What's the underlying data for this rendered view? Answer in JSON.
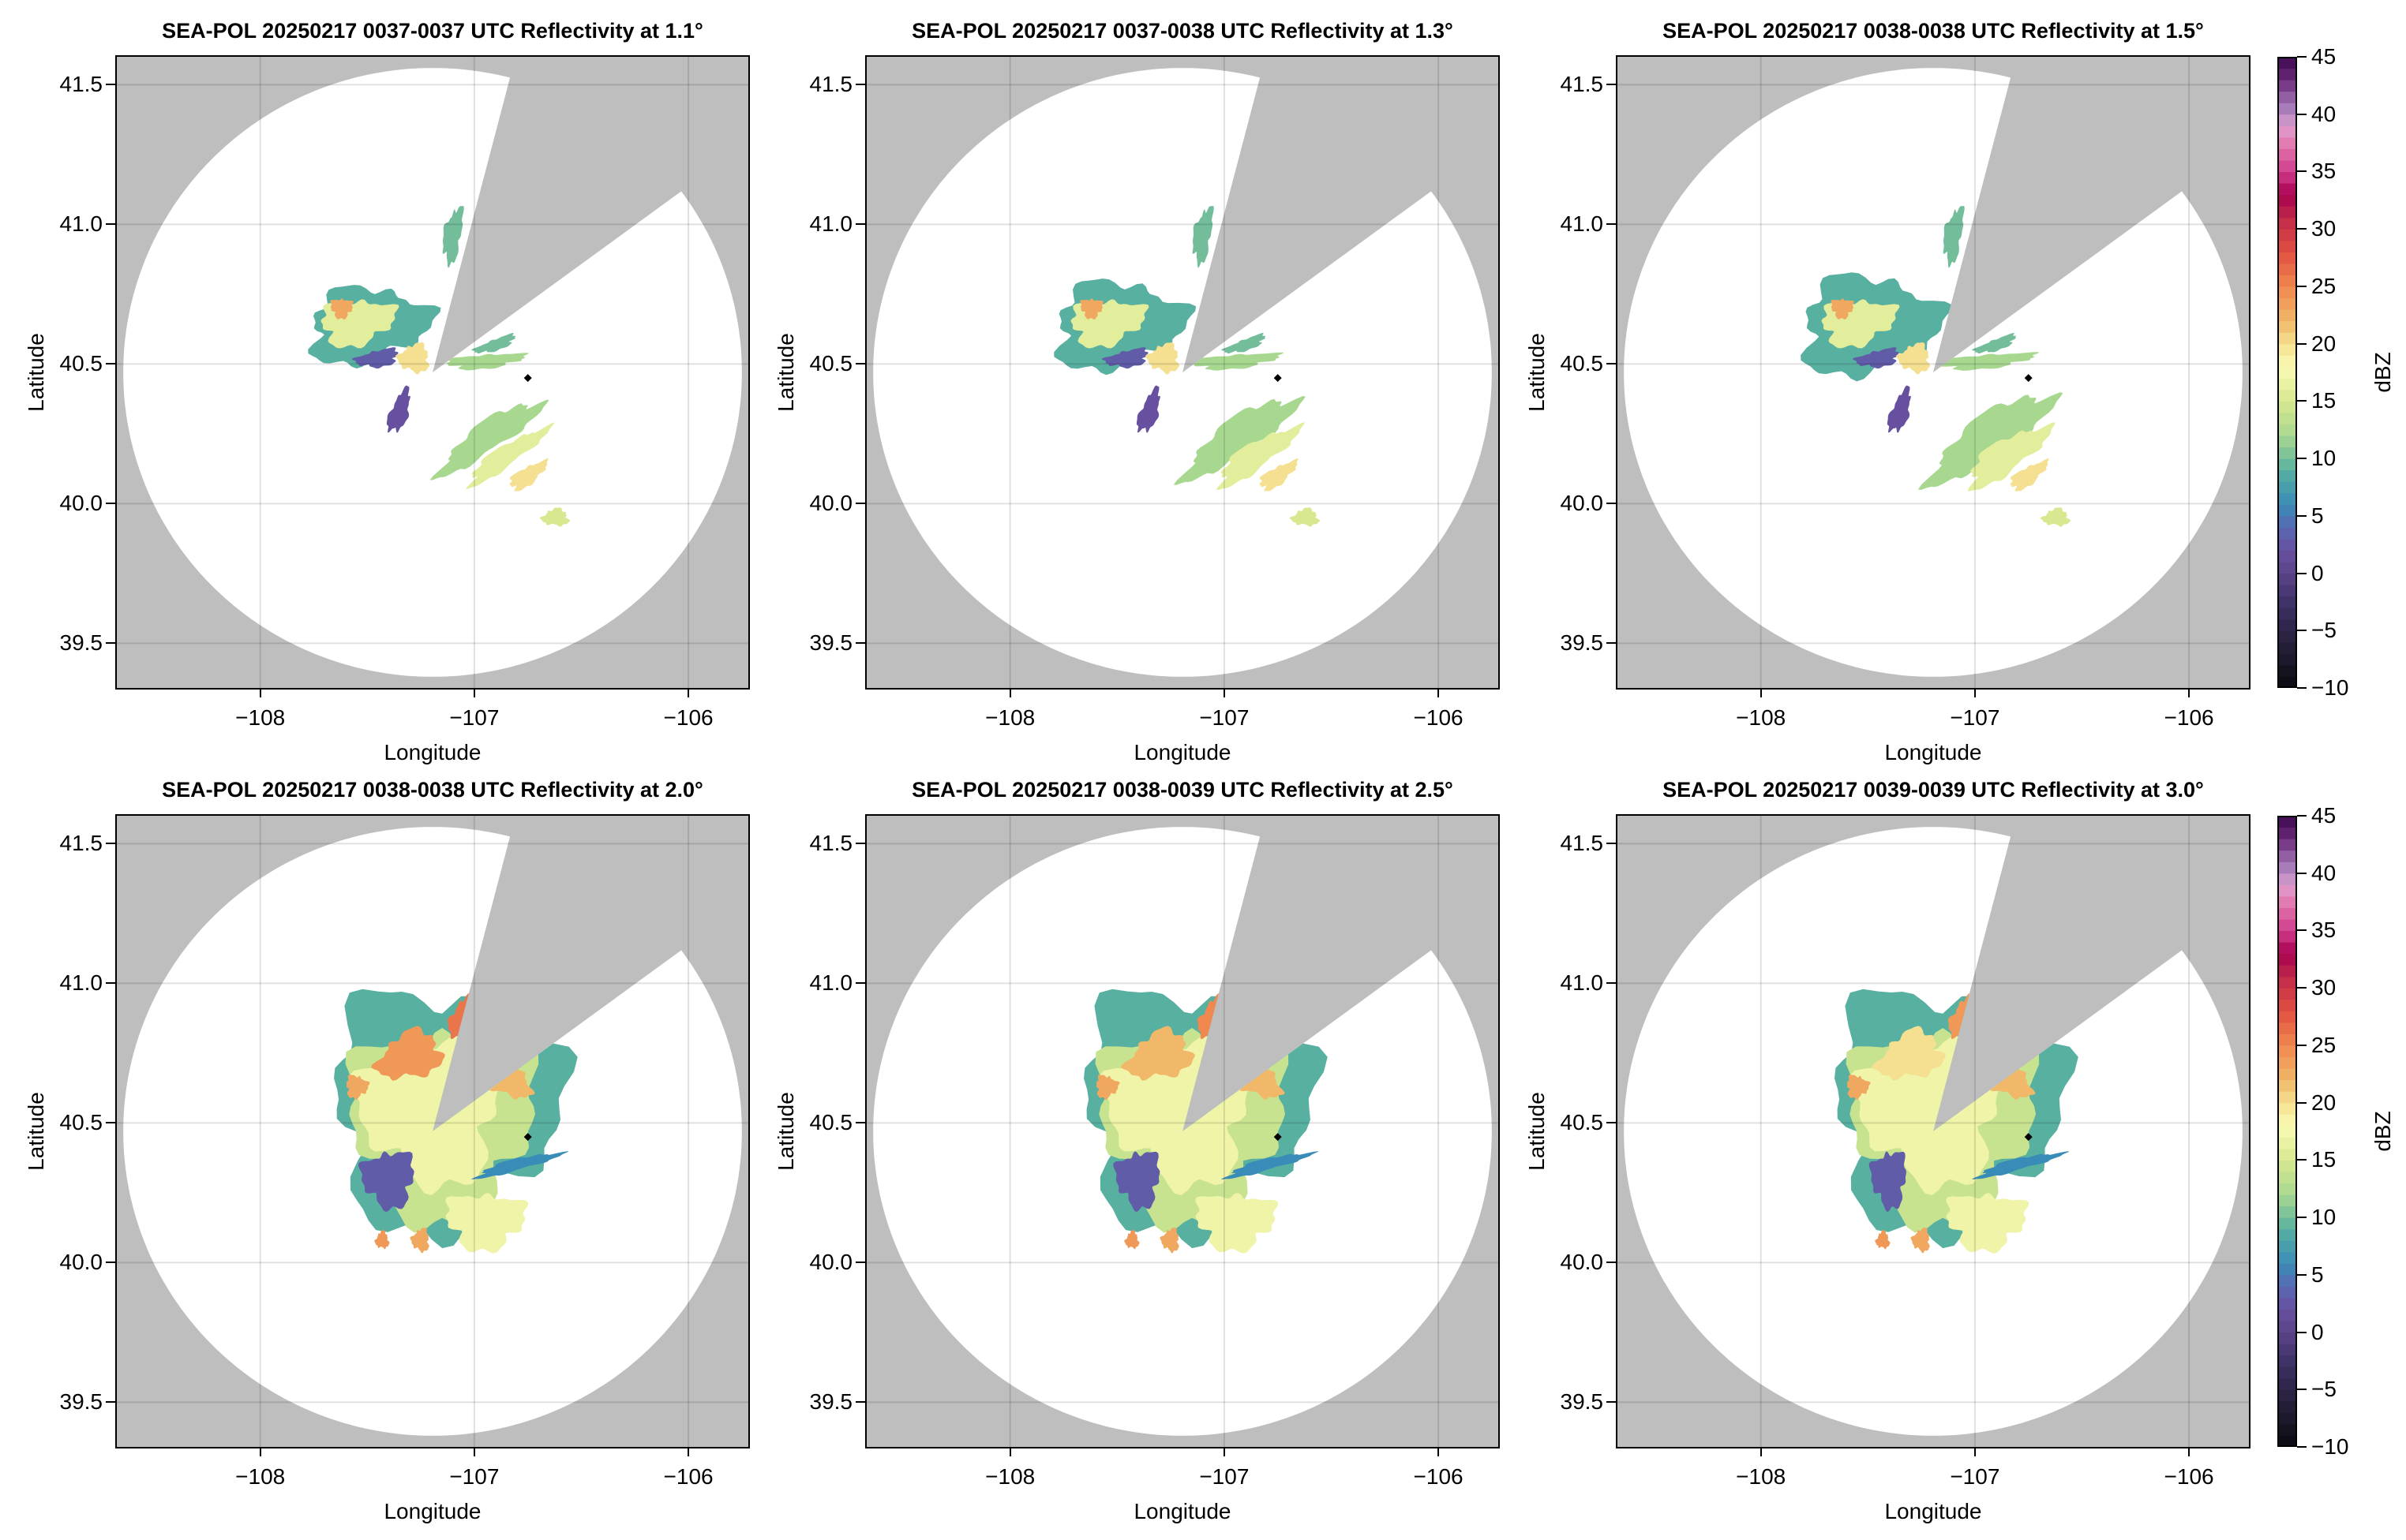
{
  "chart_data": {
    "type": "heatmap",
    "layout": "2x3 grid of radar PPI maps with shared colorbar per row",
    "xlabel": "Longitude",
    "ylabel": "Latitude",
    "xlim": [
      -108.67,
      -105.72
    ],
    "ylim": [
      39.34,
      41.6
    ],
    "xticks": [
      -108,
      -107,
      -106
    ],
    "xtick_labels": [
      "−108",
      "−107",
      "−106"
    ],
    "yticks": [
      39.5,
      40.0,
      40.5,
      41.0,
      41.5
    ],
    "ytick_labels": [
      "39.5",
      "40.0",
      "40.5",
      "41.0",
      "41.5"
    ],
    "grid": true,
    "background_color": "#bebebe",
    "radar_coverage_color": "#ffffff",
    "radar_center": {
      "lon": -107.195,
      "lat": 40.47
    },
    "radar_range_deg": {
      "lon": 1.445,
      "lat": 1.09
    },
    "blocked_sector_azimuth_deg": [
      14.5,
      53.5
    ],
    "marker": {
      "lon": -106.75,
      "lat": 40.45,
      "color": "#000000",
      "shape": "diamond"
    },
    "panels": [
      {
        "title": "SEA-POL 20250217 0037-0037 UTC Reflectivity at 1.1°",
        "elevation_deg": 1.1
      },
      {
        "title": "SEA-POL 20250217 0037-0038 UTC Reflectivity at 1.3°",
        "elevation_deg": 1.3
      },
      {
        "title": "SEA-POL 20250217 0038-0038 UTC Reflectivity at 1.5°",
        "elevation_deg": 1.5
      },
      {
        "title": "SEA-POL 20250217 0038-0038 UTC Reflectivity at 2.0°",
        "elevation_deg": 2.0
      },
      {
        "title": "SEA-POL 20250217 0038-0039 UTC Reflectivity at 2.5°",
        "elevation_deg": 2.5
      },
      {
        "title": "SEA-POL 20250217 0039-0039 UTC Reflectivity at 3.0°",
        "elevation_deg": 3.0
      }
    ],
    "colorbar": {
      "label": "dBZ",
      "range": [
        -10,
        45
      ],
      "bin_width": 1,
      "ticks": [
        -10,
        -5,
        0,
        5,
        10,
        15,
        20,
        25,
        30,
        35,
        40,
        45
      ],
      "tick_labels": [
        "−10",
        "−5",
        "0",
        "5",
        "10",
        "15",
        "20",
        "25",
        "30",
        "35",
        "40",
        "45"
      ],
      "colormap_stops": [
        {
          "value": -10,
          "color": "#0a0a0f"
        },
        {
          "value": -6,
          "color": "#28203c"
        },
        {
          "value": -3,
          "color": "#3a2e60"
        },
        {
          "value": 0,
          "color": "#5a4488"
        },
        {
          "value": 2,
          "color": "#6850a0"
        },
        {
          "value": 4,
          "color": "#5868b0"
        },
        {
          "value": 6,
          "color": "#3a8cb8"
        },
        {
          "value": 9,
          "color": "#58b0a0"
        },
        {
          "value": 12,
          "color": "#a8d890"
        },
        {
          "value": 15,
          "color": "#d8e890"
        },
        {
          "value": 18,
          "color": "#fafab4"
        },
        {
          "value": 20,
          "color": "#f4e090"
        },
        {
          "value": 22,
          "color": "#f0b868"
        },
        {
          "value": 25,
          "color": "#f08850"
        },
        {
          "value": 28,
          "color": "#e05040"
        },
        {
          "value": 31,
          "color": "#c0284a"
        },
        {
          "value": 33,
          "color": "#a8004f"
        },
        {
          "value": 35,
          "color": "#d03c8c"
        },
        {
          "value": 37,
          "color": "#e070a8"
        },
        {
          "value": 39,
          "color": "#e0a0d0"
        },
        {
          "value": 40,
          "color": "#b088c0"
        },
        {
          "value": 41,
          "color": "#a070b0"
        },
        {
          "value": 43,
          "color": "#6a2a7a"
        },
        {
          "value": 45,
          "color": "#3d0a4f"
        }
      ]
    }
  }
}
